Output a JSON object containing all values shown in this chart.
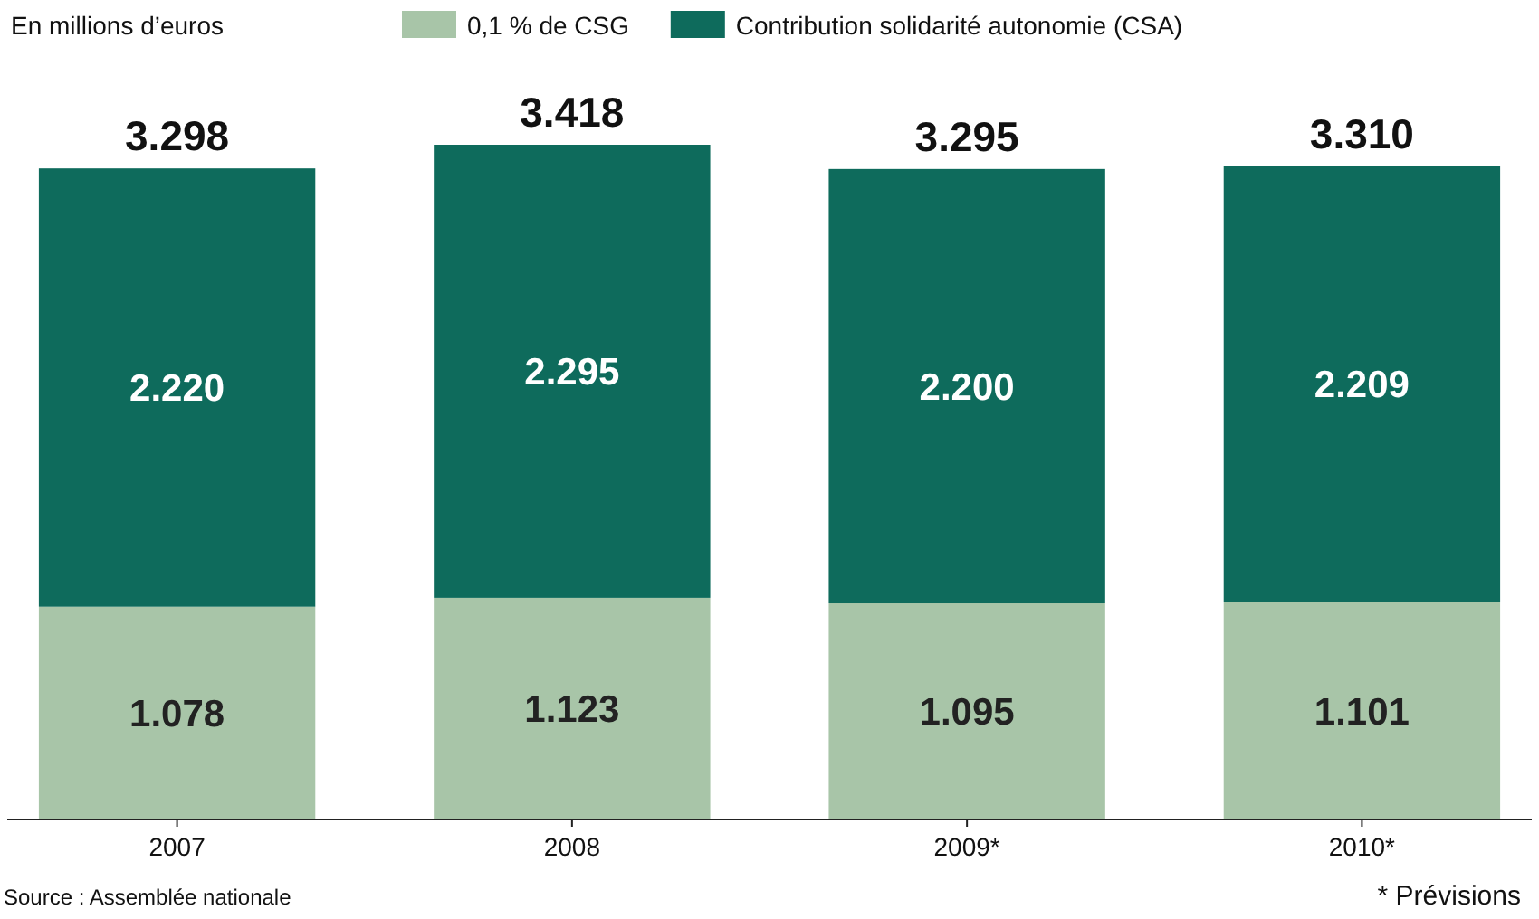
{
  "chart_data": {
    "type": "bar",
    "subtitle": "En millions d’euros",
    "categories": [
      "2007",
      "2008",
      "2009*",
      "2010*"
    ],
    "stacked": true,
    "legend": "top",
    "series": [
      {
        "name": "0,1 % de CSG",
        "color": "#a8c5a8",
        "values": [
          1078,
          1123,
          1095,
          1101
        ],
        "value_labels": [
          "1.078",
          "1.123",
          "1.095",
          "1.101"
        ]
      },
      {
        "name": "Contribution solidarité autonomie (CSA)",
        "color": "#0e6b5c",
        "values": [
          2220,
          2295,
          2200,
          2209
        ],
        "value_labels": [
          "2.220",
          "2.295",
          "2.200",
          "2.209"
        ]
      }
    ],
    "totals": [
      "3.298",
      "3.418",
      "3.295",
      "3.310"
    ],
    "annotations": [
      "Source : Assemblée nationale",
      "* Prévisions"
    ]
  }
}
